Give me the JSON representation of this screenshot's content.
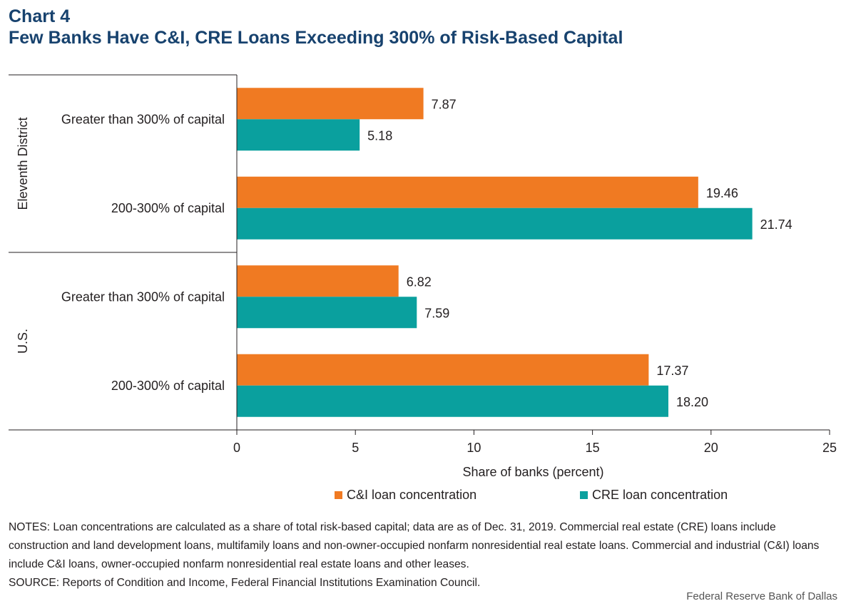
{
  "title": {
    "line1": "Chart 4",
    "line2": "Few Banks Have C&I, CRE Loans Exceeding 300% of Risk-Based Capital"
  },
  "chart_data": {
    "type": "bar",
    "orientation": "horizontal",
    "groups": [
      {
        "name": "Eleventh District",
        "categories": [
          "Greater than 300% of capital",
          "200-300% of capital"
        ]
      },
      {
        "name": "U.S.",
        "categories": [
          "Greater than 300% of capital",
          "200-300% of capital"
        ]
      }
    ],
    "series": [
      {
        "name": "C&I loan concentration",
        "color": "#f07a22",
        "values": [
          7.87,
          19.46,
          6.82,
          17.37
        ],
        "labels": [
          "7.87",
          "19.46",
          "6.82",
          "17.37"
        ]
      },
      {
        "name": "CRE loan concentration",
        "color": "#0aa09e",
        "values": [
          5.18,
          21.74,
          7.59,
          18.2
        ],
        "labels": [
          "5.18",
          "21.74",
          "7.59",
          "18.20"
        ]
      }
    ],
    "xlabel": "Share of banks (percent)",
    "xlim": [
      0,
      25
    ],
    "xticks": [
      "0",
      "5",
      "10",
      "15",
      "20",
      "25"
    ],
    "grid": false,
    "legend_position": "bottom"
  },
  "notes": {
    "notes_text": "NOTES: Loan concentrations are calculated as a share of total risk-based capital; data are as of Dec. 31, 2019. Commercial real estate (CRE) loans include construction and land development loans, multifamily loans and non-owner-occupied nonfarm nonresidential real estate loans. Commercial and industrial (C&I) loans include C&I loans, owner-occupied nonfarm nonresidential real estate loans and other leases.",
    "source_text": "SOURCE: Reports of Condition and Income, Federal Financial Institutions Examination Council."
  },
  "credit": "Federal Reserve Bank of Dallas"
}
